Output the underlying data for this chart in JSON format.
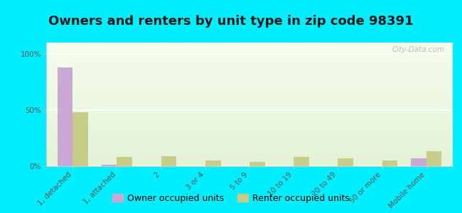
{
  "title": "Owners and renters by unit type in zip code 98391",
  "categories": [
    "1, detached",
    "1, attached",
    "2",
    "3 or 4",
    "5 to 9",
    "10 to 19",
    "20 to 49",
    "50 or more",
    "Mobile home"
  ],
  "owner_values": [
    88,
    1,
    0,
    0,
    0,
    0,
    0,
    0,
    7
  ],
  "renter_values": [
    48,
    8,
    9,
    5,
    4,
    8,
    7,
    5,
    13
  ],
  "owner_color": "#c9a8d4",
  "renter_color": "#c8cc8a",
  "background_color": "#00eeff",
  "yticks": [
    0,
    50,
    100
  ],
  "ytick_labels": [
    "0%",
    "50%",
    "100%"
  ],
  "ylim": [
    0,
    110
  ],
  "bar_width": 0.35,
  "watermark": "City-Data.com",
  "legend_owner": "Owner occupied units",
  "legend_renter": "Renter occupied units",
  "title_fontsize": 13,
  "tick_fontsize": 7.5,
  "legend_fontsize": 9
}
